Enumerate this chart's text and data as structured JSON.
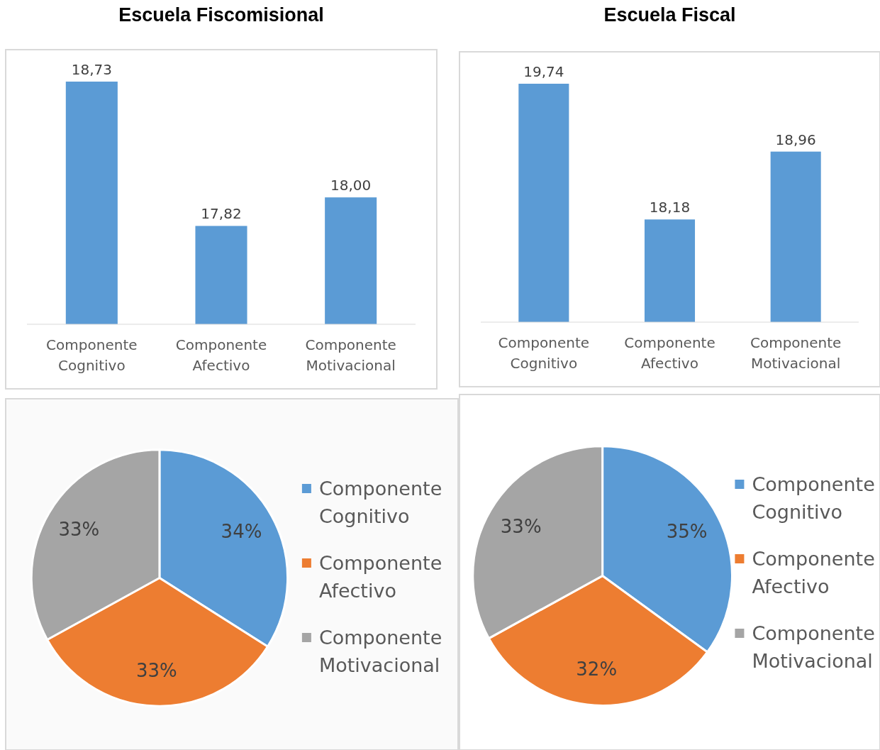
{
  "chart_data": [
    {
      "type": "bar",
      "title": "Escuela Fiscomisional",
      "categories": [
        "Componente Cognitivo",
        "Componente Afectivo",
        "Componente Motivacional"
      ],
      "values": [
        18.73,
        17.82,
        18.0
      ],
      "value_labels": [
        "18,73",
        "17,82",
        "18,00"
      ],
      "color": "#5b9bd5",
      "ylim": [
        17.2,
        18.73
      ],
      "tick_labels": "x"
    },
    {
      "type": "bar",
      "title": "Escuela Fiscal",
      "categories": [
        "Componente Cognitivo",
        "Componente Afectivo",
        "Componente Motivacional"
      ],
      "values": [
        19.74,
        18.18,
        18.96
      ],
      "value_labels": [
        "19,74",
        "18,18",
        "18,96"
      ],
      "color": "#5b9bd5",
      "ylim": [
        17.0,
        19.74
      ],
      "tick_labels": "x"
    },
    {
      "type": "pie",
      "categories": [
        "Componente Cognitivo",
        "Componente Afectivo",
        "Componente Motivacional"
      ],
      "values": [
        34,
        33,
        33
      ],
      "value_labels": [
        "34%",
        "33%",
        "33%"
      ],
      "colors": [
        "#5b9bd5",
        "#ed7d31",
        "#a5a5a5"
      ],
      "legend": "right"
    },
    {
      "type": "pie",
      "categories": [
        "Componente Cognitivo",
        "Componente Afectivo",
        "Componente Motivacional"
      ],
      "values": [
        35,
        32,
        33
      ],
      "value_labels": [
        "35%",
        "32%",
        "33%"
      ],
      "colors": [
        "#5b9bd5",
        "#ed7d31",
        "#a5a5a5"
      ],
      "legend": "right"
    }
  ]
}
